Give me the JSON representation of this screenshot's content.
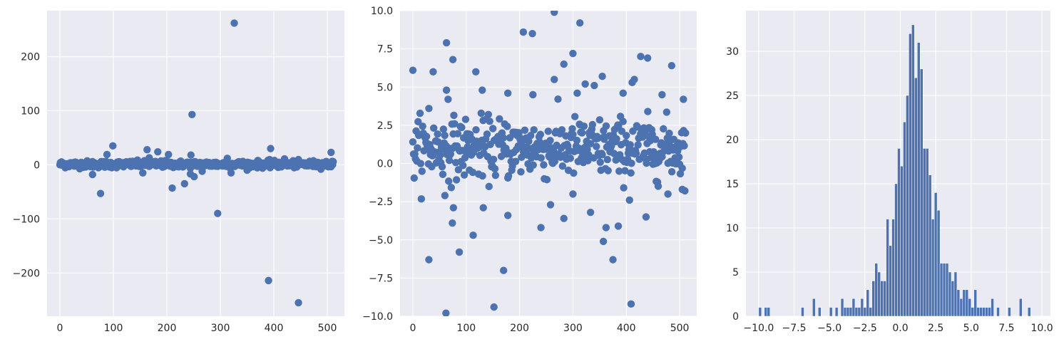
{
  "colors": {
    "marker": "#4c72b0",
    "background": "#eaeaf2",
    "grid": "#ffffff"
  },
  "chart_data": [
    {
      "type": "scatter",
      "title": "",
      "xlabel": "",
      "ylabel": "",
      "xlim": [
        -24,
        532
      ],
      "ylim": [
        -280,
        285
      ],
      "xticks": [
        0,
        100,
        200,
        300,
        400,
        500
      ],
      "yticks": [
        -200,
        -100,
        0,
        100,
        200
      ],
      "xtick_labels": [
        "0",
        "100",
        "200",
        "300",
        "400",
        "500"
      ],
      "ytick_labels": [
        "−200",
        "−100",
        "0",
        "100",
        "200"
      ],
      "grid": true,
      "outliers": [
        {
          "x": 326,
          "y": 262
        },
        {
          "x": 247,
          "y": 93
        },
        {
          "x": 99,
          "y": 35
        },
        {
          "x": 394,
          "y": 30
        },
        {
          "x": 163,
          "y": 28
        },
        {
          "x": 183,
          "y": 24
        },
        {
          "x": 507,
          "y": 23
        },
        {
          "x": 88,
          "y": 19
        },
        {
          "x": 203,
          "y": 19
        },
        {
          "x": 245,
          "y": 18
        },
        {
          "x": 167,
          "y": 13
        },
        {
          "x": 313,
          "y": 12
        },
        {
          "x": 420,
          "y": 11
        },
        {
          "x": 61,
          "y": -18
        },
        {
          "x": 244,
          "y": -17
        },
        {
          "x": 251,
          "y": -22
        },
        {
          "x": 320,
          "y": -15
        },
        {
          "x": 155,
          "y": -15
        },
        {
          "x": 266,
          "y": -12
        },
        {
          "x": 76,
          "y": -53
        },
        {
          "x": 210,
          "y": -43
        },
        {
          "x": 233,
          "y": -35
        },
        {
          "x": 295,
          "y": -90
        },
        {
          "x": 390,
          "y": -214
        },
        {
          "x": 446,
          "y": -255
        }
      ],
      "bulk": {
        "x_range": [
          0,
          511
        ],
        "y_center": 1.0,
        "y_spread": 4.5,
        "count": 512
      }
    },
    {
      "type": "scatter",
      "title": "",
      "xlabel": "",
      "ylabel": "",
      "xlim": [
        -24,
        532
      ],
      "ylim": [
        -10,
        10
      ],
      "xticks": [
        0,
        100,
        200,
        300,
        400,
        500
      ],
      "yticks": [
        -10,
        -7.5,
        -5,
        -2.5,
        0,
        2.5,
        5,
        7.5,
        10
      ],
      "xtick_labels": [
        "0",
        "100",
        "200",
        "300",
        "400",
        "500"
      ],
      "ytick_labels": [
        "−10.0",
        "−7.5",
        "−5.0",
        "−2.5",
        "0.0",
        "2.5",
        "5.0",
        "7.5",
        "10.0"
      ],
      "grid": true,
      "outliers": [
        {
          "x": 0,
          "y": 6.1
        },
        {
          "x": 38,
          "y": 6.0
        },
        {
          "x": 63,
          "y": 7.9
        },
        {
          "x": 75,
          "y": 6.8
        },
        {
          "x": 118,
          "y": 6.0
        },
        {
          "x": 207,
          "y": 8.6
        },
        {
          "x": 224,
          "y": 8.5
        },
        {
          "x": 265,
          "y": 9.9
        },
        {
          "x": 313,
          "y": 9.2
        },
        {
          "x": 300,
          "y": 7.2
        },
        {
          "x": 283,
          "y": 6.5
        },
        {
          "x": 355,
          "y": 5.7
        },
        {
          "x": 427,
          "y": 7.0
        },
        {
          "x": 440,
          "y": 6.9
        },
        {
          "x": 415,
          "y": 5.5
        },
        {
          "x": 485,
          "y": 6.4
        },
        {
          "x": 265,
          "y": 5.5
        },
        {
          "x": 30,
          "y": -6.3
        },
        {
          "x": 62,
          "y": -9.8
        },
        {
          "x": 87,
          "y": -5.8
        },
        {
          "x": 74,
          "y": -3.9
        },
        {
          "x": 152,
          "y": -9.4
        },
        {
          "x": 170,
          "y": -7.0
        },
        {
          "x": 283,
          "y": -3.6
        },
        {
          "x": 333,
          "y": -3.2
        },
        {
          "x": 357,
          "y": -5.1
        },
        {
          "x": 362,
          "y": -4.2
        },
        {
          "x": 385,
          "y": -4.1
        },
        {
          "x": 375,
          "y": -6.3
        },
        {
          "x": 409,
          "y": -9.2
        },
        {
          "x": 113,
          "y": -4.7
        },
        {
          "x": 240,
          "y": -4.2
        },
        {
          "x": 437,
          "y": -3.5
        },
        {
          "x": 60,
          "y": -2.1
        },
        {
          "x": 76,
          "y": -2.9
        },
        {
          "x": 132,
          "y": -2.9
        },
        {
          "x": 178,
          "y": -3.4
        },
        {
          "x": 258,
          "y": -2.7
        },
        {
          "x": 300,
          "y": -2.0
        },
        {
          "x": 406,
          "y": -2.4
        },
        {
          "x": 478,
          "y": -2.0
        },
        {
          "x": 505,
          "y": -1.7
        },
        {
          "x": 178,
          "y": 4.6
        },
        {
          "x": 225,
          "y": 4.5
        },
        {
          "x": 308,
          "y": 4.6
        },
        {
          "x": 323,
          "y": 5.2
        },
        {
          "x": 340,
          "y": 5.1
        },
        {
          "x": 394,
          "y": 4.6
        },
        {
          "x": 411,
          "y": 5.3
        },
        {
          "x": 467,
          "y": 4.5
        },
        {
          "x": 507,
          "y": 4.2
        },
        {
          "x": 30,
          "y": 3.6
        },
        {
          "x": 63,
          "y": 4.8
        },
        {
          "x": 66,
          "y": 4.2
        },
        {
          "x": 130,
          "y": 4.8
        }
      ],
      "bulk": {
        "x_range": [
          0,
          511
        ],
        "y_center": 1.0,
        "y_spread": 1.4,
        "count": 420
      }
    },
    {
      "type": "bar",
      "title": "",
      "xlabel": "",
      "ylabel": "",
      "xlim": [
        -10.9,
        10.6
      ],
      "ylim": [
        0,
        34.6
      ],
      "xticks": [
        -10,
        -7.5,
        -5,
        -2.5,
        0,
        2.5,
        5,
        7.5,
        10
      ],
      "yticks": [
        0,
        5,
        10,
        15,
        20,
        25,
        30
      ],
      "xtick_labels": [
        "−10.0",
        "−7.5",
        "−5.0",
        "−2.5",
        "0.0",
        "2.5",
        "5.0",
        "7.5",
        "10.0"
      ],
      "ytick_labels": [
        "0",
        "5",
        "10",
        "15",
        "20",
        "25",
        "30"
      ],
      "grid": true,
      "bin_start": -10.0,
      "bin_width": 0.2,
      "counts": [
        1,
        0,
        1,
        1,
        0,
        0,
        0,
        0,
        0,
        0,
        0,
        0,
        0,
        0,
        0,
        1,
        0,
        0,
        0,
        2,
        0,
        1,
        0,
        0,
        0,
        1,
        0,
        1,
        0,
        2,
        1,
        1,
        1,
        2,
        1,
        1,
        2,
        1,
        3,
        1,
        4,
        6,
        5,
        4,
        4,
        11,
        8,
        11,
        15,
        19,
        17,
        22,
        25,
        32,
        33,
        27,
        31,
        28,
        19,
        19,
        16,
        11,
        14,
        12,
        6,
        6,
        6,
        5,
        4,
        5,
        3,
        2,
        3,
        3,
        2,
        1,
        3,
        1,
        1,
        1,
        1,
        1,
        2,
        0,
        1,
        0,
        0,
        0,
        1,
        0,
        0,
        0,
        2,
        0,
        0,
        1,
        0,
        0,
        0,
        0
      ]
    }
  ]
}
